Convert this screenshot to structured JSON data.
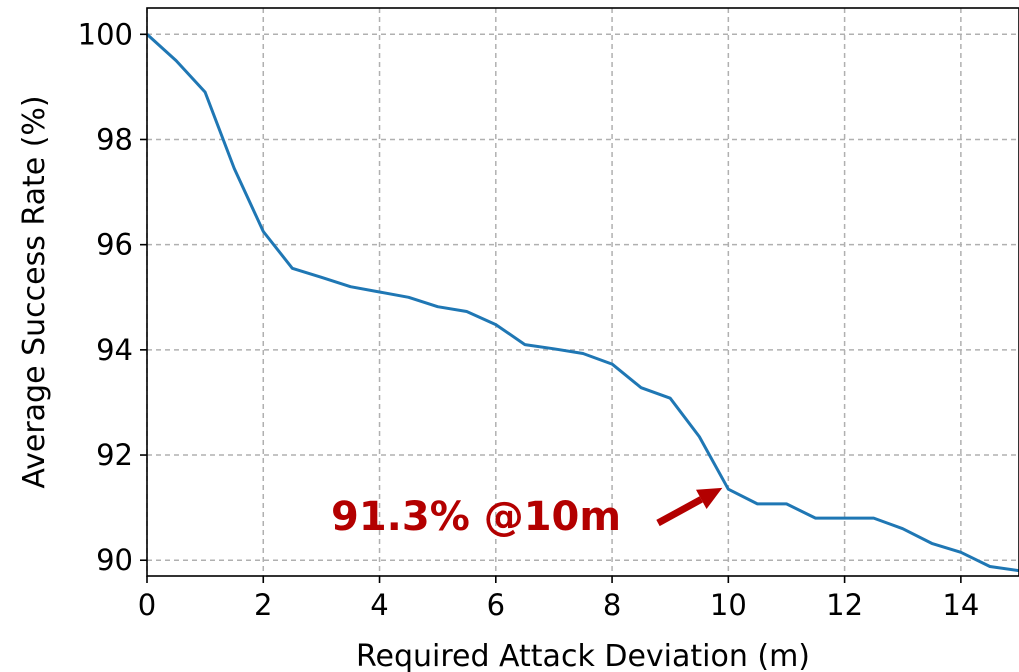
{
  "chart_data": {
    "type": "line",
    "title": "",
    "xlabel": "Required Attack Deviation (m)",
    "ylabel": "Average Success Rate (%)",
    "xlim": [
      0,
      15
    ],
    "ylim": [
      89.7,
      100.5
    ],
    "xticks": [
      0,
      2,
      4,
      6,
      8,
      10,
      12,
      14
    ],
    "yticks": [
      90,
      92,
      94,
      96,
      98,
      100
    ],
    "grid": true,
    "legend": "none",
    "series": [
      {
        "color": "#1f77b4",
        "x": [
          0,
          0.5,
          1,
          1.5,
          2,
          2.5,
          3,
          3.5,
          4,
          4.5,
          5,
          5.5,
          6,
          6.5,
          7,
          7.5,
          8,
          8.5,
          9,
          9.5,
          10,
          10.5,
          11,
          11.5,
          12,
          12.5,
          13,
          13.5,
          14,
          14.5,
          15
        ],
        "y": [
          100.0,
          99.5,
          98.9,
          97.45,
          96.25,
          95.55,
          95.38,
          95.2,
          95.1,
          95.0,
          94.82,
          94.73,
          94.48,
          94.1,
          94.02,
          93.93,
          93.73,
          93.28,
          93.08,
          92.35,
          91.35,
          91.07,
          91.07,
          90.8,
          90.8,
          90.8,
          90.6,
          90.32,
          90.15,
          89.88,
          89.8
        ]
      }
    ],
    "annotation": {
      "text": "91.3% @10m",
      "x": 10,
      "y": 91.3,
      "color": "#b30000"
    }
  }
}
